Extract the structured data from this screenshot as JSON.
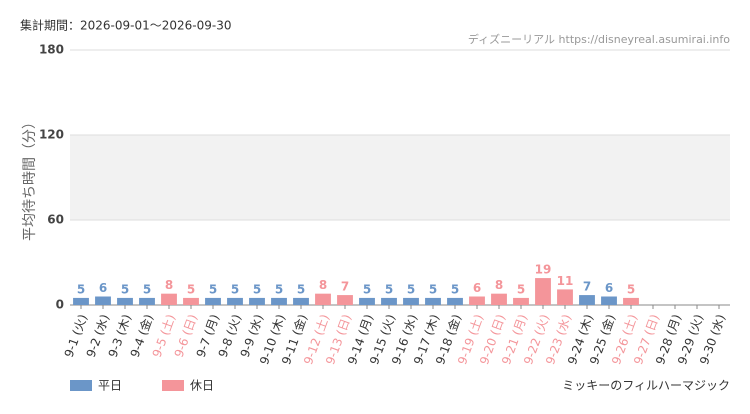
{
  "chart_data": {
    "type": "bar",
    "period_note": "集計期間：2026-09-01～2026-09-30",
    "source": "ディズニーリアル https://disneyreal.asumirai.info",
    "y_label": "平均待ち時間（分）",
    "attraction": "ミッキーのフィルハーマジック",
    "categories": [
      "9-1 (火)",
      "9-2 (水)",
      "9-3 (木)",
      "9-4 (金)",
      "9-5 (土)",
      "9-6 (日)",
      "9-7 (月)",
      "9-8 (火)",
      "9-9 (水)",
      "9-10 (木)",
      "9-11 (金)",
      "9-12 (土)",
      "9-13 (日)",
      "9-14 (月)",
      "9-15 (火)",
      "9-16 (水)",
      "9-17 (木)",
      "9-18 (金)",
      "9-19 (土)",
      "9-20 (日)",
      "9-21 (月)",
      "9-22 (火)",
      "9-23 (水)",
      "9-24 (木)",
      "9-25 (金)",
      "9-26 (土)",
      "9-27 (日)",
      "9-28 (月)",
      "9-29 (火)",
      "9-30 (水)"
    ],
    "x_label_colors": [
      "#333",
      "#333",
      "#333",
      "#333",
      "#f4959a",
      "#f4959a",
      "#333",
      "#333",
      "#333",
      "#333",
      "#333",
      "#f4959a",
      "#f4959a",
      "#333",
      "#333",
      "#333",
      "#333",
      "#333",
      "#f4959a",
      "#f4959a",
      "#f4959a",
      "#f4959a",
      "#f4959a",
      "#333",
      "#333",
      "#f4959a",
      "#f4959a",
      "#333",
      "#333",
      "#333"
    ],
    "series": [
      {
        "name": "平日",
        "color": "#6b96c8",
        "values": [
          5,
          6,
          5,
          5,
          null,
          null,
          5,
          5,
          5,
          5,
          5,
          null,
          null,
          5,
          5,
          5,
          5,
          5,
          null,
          null,
          null,
          null,
          null,
          7,
          6,
          null,
          null,
          null,
          null,
          null
        ]
      },
      {
        "name": "休日",
        "color": "#f4959a",
        "values": [
          null,
          null,
          null,
          null,
          8,
          5,
          null,
          null,
          null,
          null,
          null,
          8,
          7,
          null,
          null,
          null,
          null,
          null,
          6,
          8,
          5,
          19,
          11,
          null,
          null,
          5,
          null,
          null,
          null,
          null
        ]
      }
    ],
    "ylim": [
      0,
      180
    ],
    "yticks": [
      0,
      60,
      120,
      180
    ],
    "grid": true
  }
}
